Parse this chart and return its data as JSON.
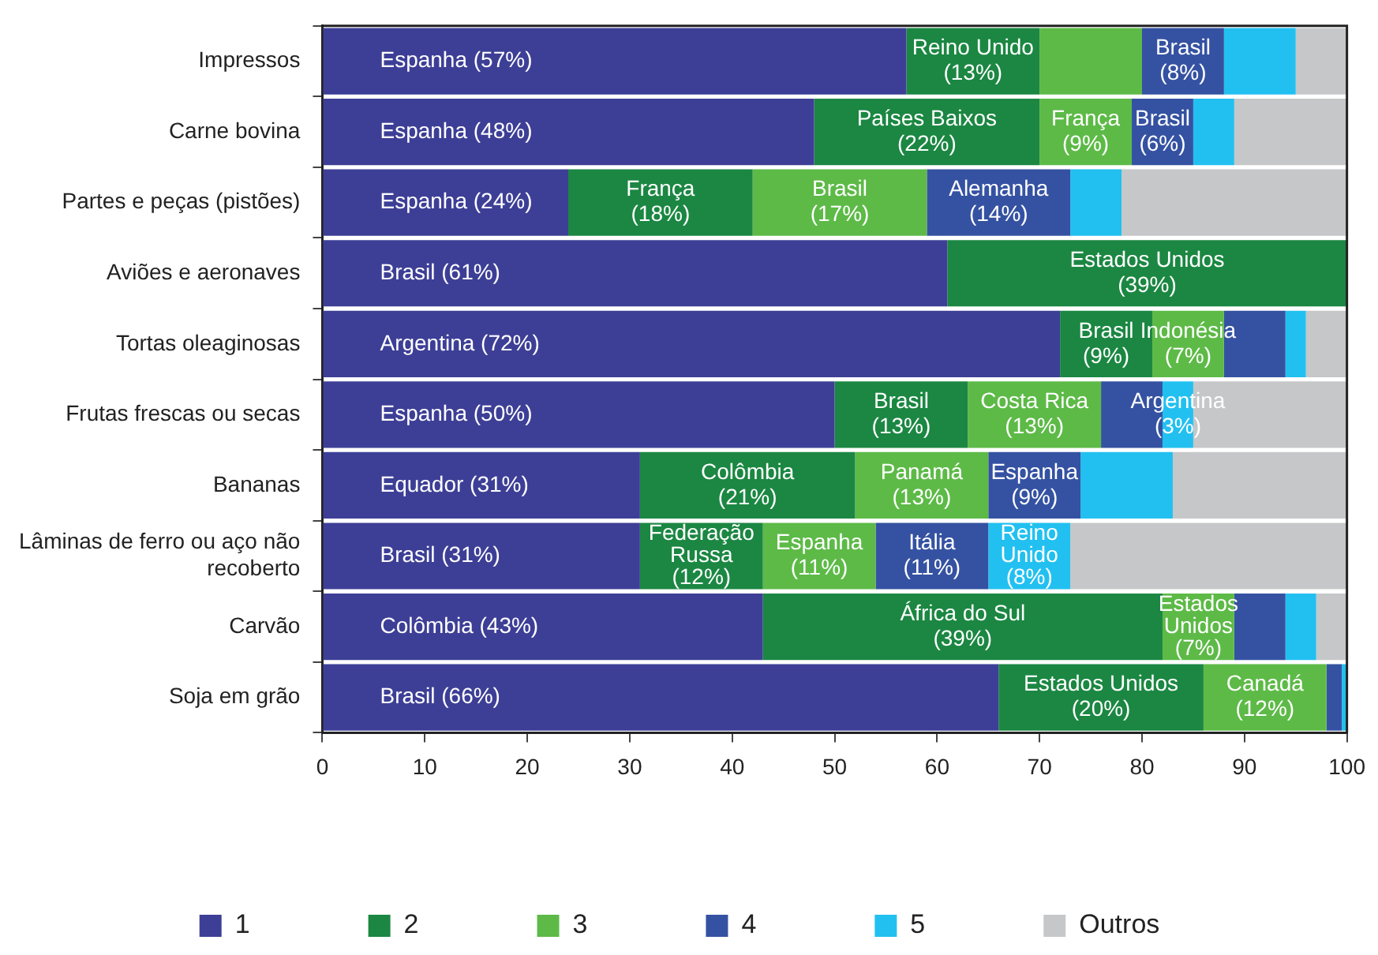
{
  "chart_data": {
    "type": "bar",
    "orientation": "horizontal",
    "stacked": true,
    "categories": [
      "Impressos",
      "Carne bovina",
      "Partes e peças (pistões)",
      "Aviões e aeronaves",
      "Tortas oleaginosas",
      "Frutas frescas ou secas",
      "Bananas",
      "Lâminas de ferro ou aço não\nrecoberto",
      "Carvão",
      "Soja em grão"
    ],
    "xlim": [
      0,
      100
    ],
    "xticks": [
      0,
      10,
      20,
      30,
      40,
      50,
      60,
      70,
      80,
      90,
      100
    ],
    "grid": false,
    "legend": "bottom",
    "series": [
      {
        "name": "1",
        "color": "#3d3f96",
        "values": [
          57,
          48,
          24,
          61,
          72,
          50,
          31,
          31,
          43,
          66
        ],
        "value_labels": [
          "Espanha (57%)",
          "Espanha (48%)",
          "Espanha (24%)",
          "Brasil (61%)",
          "Argentina (72%)",
          "Espanha (50%)",
          "Equador (31%)",
          "Brasil (31%)",
          "Colômbia (43%)",
          "Brasil (66%)"
        ]
      },
      {
        "name": "2",
        "color": "#1b8742",
        "values": [
          13,
          22,
          18,
          39,
          9,
          13,
          21,
          12,
          39,
          20
        ],
        "value_labels": [
          "Reino Unido\n(13%)",
          "Países Baixos\n(22%)",
          "França\n(18%)",
          "Estados Unidos\n(39%)",
          "Brasil\n(9%)",
          "Brasil\n(13%)",
          "Colômbia\n(21%)",
          "Federação\nRussa\n(12%)",
          "África do Sul\n(39%)",
          "Estados Unidos\n(20%)"
        ]
      },
      {
        "name": "3",
        "color": "#5dba47",
        "values": [
          10,
          9,
          17,
          null,
          7,
          13,
          13,
          11,
          7,
          12
        ],
        "value_labels": [
          null,
          "França\n(9%)",
          "Brasil\n(17%)",
          null,
          "Indonésia\n(7%)",
          "Costa Rica\n(13%)",
          "Panamá\n(13%)",
          "Espanha\n(11%)",
          "Estados\nUnidos\n(7%)",
          "Canadá\n(12%)"
        ]
      },
      {
        "name": "4",
        "color": "#3552a2",
        "values": [
          8,
          6,
          14,
          null,
          6,
          6,
          9,
          11,
          5,
          1.5
        ],
        "value_labels": [
          "Brasil\n(8%)",
          "Brasil\n(6%)",
          "Alemanha\n(14%)",
          null,
          null,
          null,
          "Espanha\n(9%)",
          "Itália\n(11%)",
          null,
          null
        ]
      },
      {
        "name": "5",
        "color": "#22c0f0",
        "values": [
          7,
          4,
          5,
          null,
          2,
          3,
          9,
          8,
          3,
          0.5
        ],
        "value_labels": [
          null,
          null,
          null,
          null,
          null,
          "Argentina\n(3%)",
          null,
          "Reino\nUnido\n(8%)",
          null,
          null
        ]
      },
      {
        "name": "Outros",
        "color": "#c6c7c9",
        "values": [
          5,
          11,
          22,
          null,
          4,
          15,
          17,
          27,
          3,
          null
        ]
      }
    ]
  }
}
